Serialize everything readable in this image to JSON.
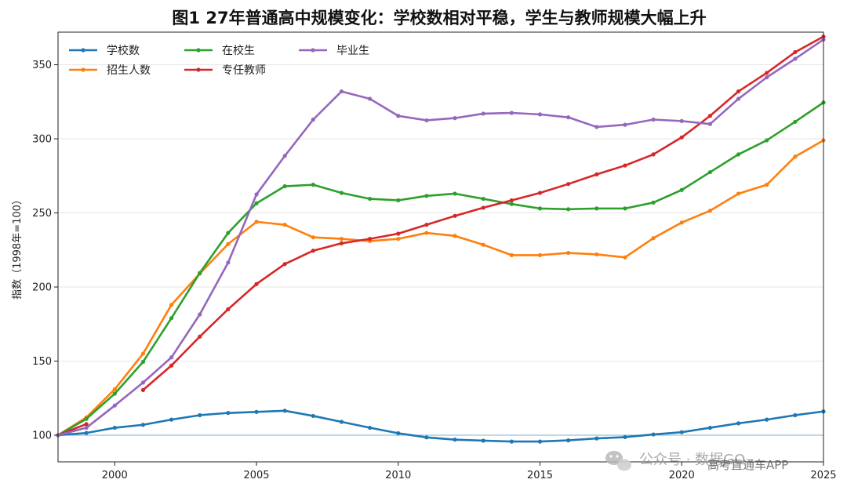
{
  "chart_data": {
    "type": "line",
    "title": "图1 27年普通高中规模变化：学校数相对平稳，学生与教师规模大幅上升",
    "xlabel": "",
    "ylabel": "指数（1998年=100）",
    "xlim": [
      1998,
      2025
    ],
    "ylim": [
      82,
      372
    ],
    "xticks": [
      2000,
      2005,
      2010,
      2015,
      2020,
      2025
    ],
    "yticks": [
      100,
      150,
      200,
      250,
      300,
      350
    ],
    "grid": "horizontal-light",
    "legend_position": "top-left",
    "reference_line": 100,
    "series": [
      {
        "name": "学校数",
        "color": "#1f77b4",
        "points": [
          [
            1998,
            100
          ],
          [
            1999,
            101.5
          ],
          [
            2000,
            105
          ],
          [
            2001,
            107
          ],
          [
            2002,
            110.5
          ],
          [
            2003,
            113.5
          ],
          [
            2004,
            115
          ],
          [
            2005,
            115.7
          ],
          [
            2006,
            116.5
          ],
          [
            2007,
            113
          ],
          [
            2008,
            109
          ],
          [
            2009,
            105
          ],
          [
            2010,
            101.3
          ],
          [
            2011,
            98.5
          ],
          [
            2012,
            97
          ],
          [
            2013,
            96.3
          ],
          [
            2014,
            95.7
          ],
          [
            2015,
            95.7
          ],
          [
            2016,
            96.5
          ],
          [
            2017,
            97.8
          ],
          [
            2018,
            98.7
          ],
          [
            2019,
            100.5
          ],
          [
            2020,
            102
          ],
          [
            2021,
            105
          ],
          [
            2022,
            108
          ],
          [
            2023,
            110.5
          ],
          [
            2024,
            113.5
          ],
          [
            2025,
            116
          ]
        ]
      },
      {
        "name": "招生人数",
        "color": "#ff7f0e",
        "points": [
          [
            1998,
            100
          ],
          [
            1999,
            112
          ],
          [
            2000,
            131
          ],
          [
            2001,
            155
          ],
          [
            2002,
            188
          ],
          [
            2003,
            209
          ],
          [
            2004,
            229
          ],
          [
            2005,
            244
          ],
          [
            2006,
            242
          ],
          [
            2007,
            233.5
          ],
          [
            2008,
            232.5
          ],
          [
            2009,
            231
          ],
          [
            2010,
            232.5
          ],
          [
            2011,
            236.5
          ],
          [
            2012,
            234.5
          ],
          [
            2013,
            228.5
          ],
          [
            2014,
            221.5
          ],
          [
            2015,
            221.5
          ],
          [
            2016,
            223
          ],
          [
            2017,
            222
          ],
          [
            2018,
            220
          ],
          [
            2019,
            233
          ],
          [
            2020,
            243.5
          ],
          [
            2021,
            251.5
          ],
          [
            2022,
            263
          ],
          [
            2023,
            269
          ],
          [
            2024,
            288
          ],
          [
            2025,
            299
          ]
        ]
      },
      {
        "name": "在校生",
        "color": "#2ca02c",
        "points": [
          [
            1998,
            100
          ],
          [
            1999,
            111
          ],
          [
            2000,
            128
          ],
          [
            2001,
            149.5
          ],
          [
            2002,
            179
          ],
          [
            2003,
            209.5
          ],
          [
            2004,
            236.5
          ],
          [
            2005,
            256.5
          ],
          [
            2006,
            268
          ],
          [
            2007,
            269
          ],
          [
            2008,
            263.5
          ],
          [
            2009,
            259.5
          ],
          [
            2010,
            258.5
          ],
          [
            2011,
            261.5
          ],
          [
            2012,
            263
          ],
          [
            2013,
            259.5
          ],
          [
            2014,
            256
          ],
          [
            2015,
            253
          ],
          [
            2016,
            252.5
          ],
          [
            2017,
            253
          ],
          [
            2018,
            253
          ],
          [
            2019,
            257
          ],
          [
            2020,
            265.5
          ],
          [
            2021,
            277.5
          ],
          [
            2022,
            289.5
          ],
          [
            2023,
            299
          ],
          [
            2024,
            311.5
          ],
          [
            2025,
            324.5
          ]
        ]
      },
      {
        "name": "专任教师",
        "color": "#d62728",
        "points": [
          [
            1998,
            100
          ],
          [
            1999,
            107.5
          ],
          [
            2000,
            null
          ],
          [
            2001,
            130.5
          ],
          [
            2002,
            147
          ],
          [
            2003,
            166.5
          ],
          [
            2004,
            185
          ],
          [
            2005,
            202
          ],
          [
            2006,
            215.5
          ],
          [
            2007,
            224.5
          ],
          [
            2008,
            229.5
          ],
          [
            2009,
            232.5
          ],
          [
            2010,
            236
          ],
          [
            2011,
            242
          ],
          [
            2012,
            248
          ],
          [
            2013,
            253.5
          ],
          [
            2014,
            258.5
          ],
          [
            2015,
            263.5
          ],
          [
            2016,
            269.5
          ],
          [
            2017,
            276
          ],
          [
            2018,
            282
          ],
          [
            2019,
            289.5
          ],
          [
            2020,
            301
          ],
          [
            2021,
            315.5
          ],
          [
            2022,
            332
          ],
          [
            2023,
            344.5
          ],
          [
            2024,
            358.5
          ],
          [
            2025,
            369
          ]
        ]
      },
      {
        "name": "毕业生",
        "color": "#9467bd",
        "points": [
          [
            1998,
            100
          ],
          [
            1999,
            105
          ],
          [
            2000,
            120
          ],
          [
            2001,
            135.5
          ],
          [
            2002,
            152.5
          ],
          [
            2003,
            181.5
          ],
          [
            2004,
            216.5
          ],
          [
            2005,
            262.5
          ],
          [
            2006,
            288.5
          ],
          [
            2007,
            313
          ],
          [
            2008,
            332
          ],
          [
            2009,
            327
          ],
          [
            2010,
            315.5
          ],
          [
            2011,
            312.5
          ],
          [
            2012,
            314
          ],
          [
            2013,
            317
          ],
          [
            2014,
            317.5
          ],
          [
            2015,
            316.5
          ],
          [
            2016,
            314.5
          ],
          [
            2017,
            308
          ],
          [
            2018,
            309.5
          ],
          [
            2019,
            313
          ],
          [
            2020,
            312
          ],
          [
            2021,
            310
          ],
          [
            2022,
            327
          ],
          [
            2023,
            341.5
          ],
          [
            2024,
            354
          ],
          [
            2025,
            367
          ]
        ]
      }
    ]
  },
  "watermark": {
    "primary": "公众号 · 数据GO",
    "secondary": "高考直通车APP",
    "icon": "wechat-icon"
  }
}
